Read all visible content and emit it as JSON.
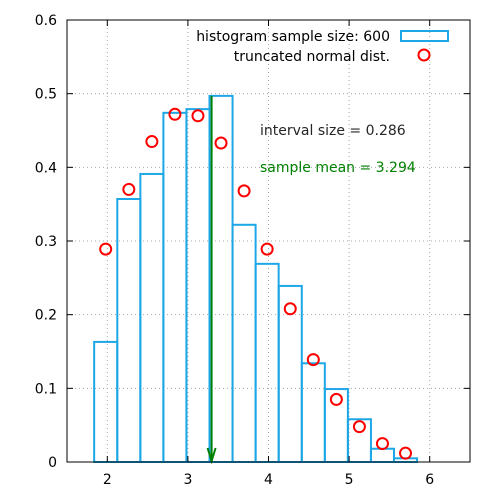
{
  "chart_data": {
    "type": "bar",
    "xlim": [
      1.5,
      6.5
    ],
    "ylim": [
      0,
      0.6
    ],
    "xticks": [
      2,
      3,
      4,
      5,
      6
    ],
    "xtick_labels": [
      "2",
      "3",
      "4",
      "5",
      "6"
    ],
    "yticks": [
      0,
      0.1,
      0.2,
      0.3,
      0.4,
      0.5,
      0.6
    ],
    "ytick_labels": [
      "0",
      "0.1",
      "0.2",
      "0.3",
      "0.4",
      "0.5",
      "0.6"
    ],
    "grid": true,
    "legend_position": "top-right",
    "series": [
      {
        "name": "histogram sample size: 600",
        "type": "bar",
        "color": "#1ea7e6",
        "x": [
          1.98,
          2.267,
          2.553,
          2.839,
          3.125,
          3.411,
          3.697,
          3.983,
          4.27,
          4.556,
          4.842,
          5.128,
          5.414,
          5.7
        ],
        "values": [
          0.163,
          0.357,
          0.391,
          0.474,
          0.479,
          0.497,
          0.322,
          0.269,
          0.239,
          0.134,
          0.099,
          0.058,
          0.018,
          0.005
        ]
      },
      {
        "name": "truncated normal dist.",
        "type": "scatter",
        "color": "#ff0000",
        "x": [
          1.98,
          2.267,
          2.553,
          2.839,
          3.125,
          3.411,
          3.697,
          3.983,
          4.27,
          4.556,
          4.842,
          5.128,
          5.414,
          5.7
        ],
        "values": [
          0.289,
          0.37,
          0.435,
          0.472,
          0.47,
          0.433,
          0.368,
          0.289,
          0.208,
          0.139,
          0.085,
          0.048,
          0.025,
          0.012
        ]
      }
    ],
    "bar_width": 0.286,
    "annotations": [
      {
        "text": "interval size = 0.286",
        "color": "#262626"
      },
      {
        "text": "sample mean = 3.294",
        "color": "#008000"
      }
    ],
    "mean_marker": {
      "x": 3.294,
      "y_top": 0.497,
      "color": "#008000"
    }
  }
}
